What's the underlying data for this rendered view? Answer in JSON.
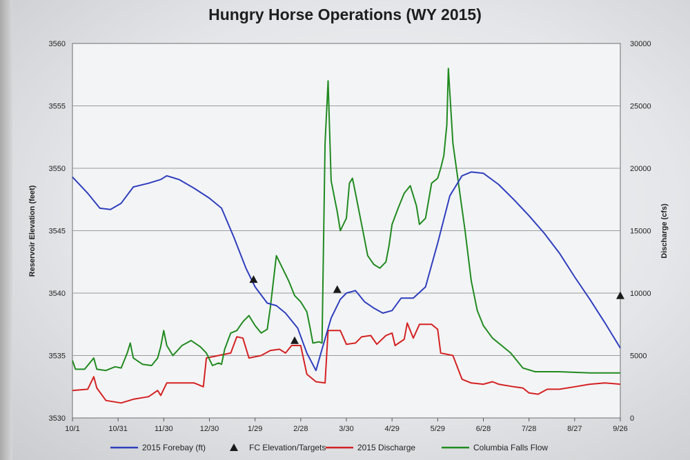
{
  "chart_data": {
    "type": "line",
    "title": "Hungry Horse Operations (WY 2015)",
    "ylabel": "Reservoir Elevation (feet)",
    "y2label": "Discharge (cfs)",
    "ylim": [
      3530,
      3560
    ],
    "y2lim": [
      0,
      30000
    ],
    "xlim": [
      0,
      360
    ],
    "y_ticks": [
      "3530",
      "3535",
      "3540",
      "3545",
      "3550",
      "3555",
      "3560"
    ],
    "y2_ticks": [
      "0",
      "5000",
      "10000",
      "15000",
      "20000",
      "25000",
      "30000"
    ],
    "x_ticks": [
      {
        "x": 0,
        "label": "10/1"
      },
      {
        "x": 30,
        "label": "10/31"
      },
      {
        "x": 60,
        "label": "11/30"
      },
      {
        "x": 90,
        "label": "12/30"
      },
      {
        "x": 120,
        "label": "1/29"
      },
      {
        "x": 150,
        "label": "2/28"
      },
      {
        "x": 180,
        "label": "3/30"
      },
      {
        "x": 210,
        "label": "4/29"
      },
      {
        "x": 240,
        "label": "5/29"
      },
      {
        "x": 270,
        "label": "6/28"
      },
      {
        "x": 300,
        "label": "7/28"
      },
      {
        "x": 330,
        "label": "8/27"
      },
      {
        "x": 360,
        "label": "9/26"
      }
    ],
    "grid": true,
    "legend_position": "bottom",
    "series": [
      {
        "name": "2015 Forebay (ft)",
        "axis": "left",
        "color": "#2e3ebd",
        "points": [
          [
            0,
            3549.3
          ],
          [
            10,
            3548
          ],
          [
            18,
            3546.8
          ],
          [
            25,
            3546.7
          ],
          [
            32,
            3547.2
          ],
          [
            40,
            3548.5
          ],
          [
            50,
            3548.8
          ],
          [
            58,
            3549.1
          ],
          [
            62,
            3549.4
          ],
          [
            70,
            3549.1
          ],
          [
            80,
            3548.4
          ],
          [
            90,
            3547.6
          ],
          [
            98,
            3546.8
          ],
          [
            106,
            3544.5
          ],
          [
            114,
            3542
          ],
          [
            120,
            3540.5
          ],
          [
            128,
            3539.2
          ],
          [
            134,
            3539
          ],
          [
            140,
            3538.4
          ],
          [
            148,
            3537.2
          ],
          [
            154,
            3535.2
          ],
          [
            160,
            3533.8
          ],
          [
            164,
            3535.5
          ],
          [
            170,
            3538
          ],
          [
            176,
            3539.5
          ],
          [
            180,
            3540
          ],
          [
            186,
            3540.2
          ],
          [
            192,
            3539.3
          ],
          [
            198,
            3538.8
          ],
          [
            204,
            3538.4
          ],
          [
            210,
            3538.6
          ],
          [
            216,
            3539.6
          ],
          [
            224,
            3539.6
          ],
          [
            232,
            3540.5
          ],
          [
            240,
            3544
          ],
          [
            248,
            3547.8
          ],
          [
            256,
            3549.4
          ],
          [
            262,
            3549.7
          ],
          [
            270,
            3549.6
          ],
          [
            280,
            3548.7
          ],
          [
            290,
            3547.5
          ],
          [
            300,
            3546.2
          ],
          [
            310,
            3544.8
          ],
          [
            320,
            3543.2
          ],
          [
            330,
            3541.3
          ],
          [
            340,
            3539.5
          ],
          [
            350,
            3537.6
          ],
          [
            360,
            3535.6
          ]
        ]
      },
      {
        "name": "FC Elevation/Targets",
        "axis": "left",
        "marker": "triangle",
        "color": "#1a1a1a",
        "points": [
          [
            119,
            3541.1
          ],
          [
            146,
            3536.2
          ],
          [
            174,
            3540.3
          ],
          [
            360,
            3539.8
          ]
        ]
      },
      {
        "name": "2015 Discharge",
        "axis": "right",
        "color": "#d42121",
        "points": [
          [
            0,
            2200
          ],
          [
            10,
            2300
          ],
          [
            14,
            3300
          ],
          [
            16,
            2400
          ],
          [
            22,
            1400
          ],
          [
            32,
            1200
          ],
          [
            40,
            1500
          ],
          [
            50,
            1700
          ],
          [
            56,
            2200
          ],
          [
            58,
            1800
          ],
          [
            62,
            2800
          ],
          [
            70,
            2800
          ],
          [
            80,
            2800
          ],
          [
            86,
            2500
          ],
          [
            88,
            4800
          ],
          [
            96,
            5000
          ],
          [
            104,
            5200
          ],
          [
            108,
            6500
          ],
          [
            112,
            6400
          ],
          [
            116,
            4800
          ],
          [
            124,
            5000
          ],
          [
            130,
            5400
          ],
          [
            136,
            5500
          ],
          [
            140,
            5200
          ],
          [
            144,
            5800
          ],
          [
            150,
            5800
          ],
          [
            154,
            3500
          ],
          [
            160,
            2900
          ],
          [
            166,
            2800
          ],
          [
            168,
            7000
          ],
          [
            176,
            7000
          ],
          [
            180,
            5900
          ],
          [
            186,
            6000
          ],
          [
            190,
            6500
          ],
          [
            196,
            6600
          ],
          [
            200,
            5900
          ],
          [
            206,
            6600
          ],
          [
            210,
            6800
          ],
          [
            212,
            5800
          ],
          [
            218,
            6300
          ],
          [
            220,
            7600
          ],
          [
            224,
            6400
          ],
          [
            228,
            7500
          ],
          [
            236,
            7500
          ],
          [
            240,
            7100
          ],
          [
            242,
            5200
          ],
          [
            250,
            5000
          ],
          [
            256,
            3100
          ],
          [
            262,
            2800
          ],
          [
            270,
            2700
          ],
          [
            276,
            2900
          ],
          [
            280,
            2700
          ],
          [
            290,
            2500
          ],
          [
            296,
            2400
          ],
          [
            300,
            2000
          ],
          [
            306,
            1900
          ],
          [
            312,
            2300
          ],
          [
            320,
            2300
          ],
          [
            330,
            2500
          ],
          [
            340,
            2700
          ],
          [
            350,
            2800
          ],
          [
            360,
            2700
          ]
        ]
      },
      {
        "name": "Columbia Falls Flow",
        "axis": "right",
        "color": "#1f8a1f",
        "points": [
          [
            0,
            4600
          ],
          [
            2,
            3900
          ],
          [
            8,
            3900
          ],
          [
            14,
            4800
          ],
          [
            16,
            3900
          ],
          [
            22,
            3800
          ],
          [
            28,
            4100
          ],
          [
            32,
            4000
          ],
          [
            36,
            5200
          ],
          [
            38,
            6000
          ],
          [
            40,
            4800
          ],
          [
            46,
            4300
          ],
          [
            52,
            4200
          ],
          [
            56,
            4800
          ],
          [
            58,
            5700
          ],
          [
            60,
            7000
          ],
          [
            62,
            5800
          ],
          [
            66,
            5000
          ],
          [
            72,
            5800
          ],
          [
            78,
            6200
          ],
          [
            84,
            5700
          ],
          [
            88,
            5200
          ],
          [
            92,
            4200
          ],
          [
            96,
            4400
          ],
          [
            98,
            4300
          ],
          [
            100,
            5500
          ],
          [
            104,
            6800
          ],
          [
            108,
            7000
          ],
          [
            112,
            7700
          ],
          [
            116,
            8200
          ],
          [
            120,
            7400
          ],
          [
            124,
            6800
          ],
          [
            128,
            7100
          ],
          [
            130,
            8800
          ],
          [
            134,
            13000
          ],
          [
            138,
            12000
          ],
          [
            142,
            11000
          ],
          [
            146,
            9800
          ],
          [
            150,
            9300
          ],
          [
            154,
            8500
          ],
          [
            156,
            7300
          ],
          [
            158,
            6000
          ],
          [
            162,
            6100
          ],
          [
            164,
            6000
          ],
          [
            166,
            22000
          ],
          [
            168,
            27000
          ],
          [
            170,
            19000
          ],
          [
            174,
            16500
          ],
          [
            176,
            15000
          ],
          [
            180,
            16000
          ],
          [
            182,
            18800
          ],
          [
            184,
            19200
          ],
          [
            186,
            18000
          ],
          [
            190,
            15500
          ],
          [
            194,
            13000
          ],
          [
            198,
            12300
          ],
          [
            202,
            12000
          ],
          [
            206,
            12500
          ],
          [
            208,
            13800
          ],
          [
            210,
            15500
          ],
          [
            214,
            16800
          ],
          [
            218,
            18000
          ],
          [
            222,
            18600
          ],
          [
            226,
            17000
          ],
          [
            228,
            15500
          ],
          [
            232,
            16000
          ],
          [
            236,
            18800
          ],
          [
            240,
            19200
          ],
          [
            242,
            20000
          ],
          [
            244,
            21000
          ],
          [
            246,
            23500
          ],
          [
            247,
            28000
          ],
          [
            248,
            26000
          ],
          [
            250,
            22000
          ],
          [
            254,
            18500
          ],
          [
            258,
            15000
          ],
          [
            262,
            11000
          ],
          [
            266,
            8600
          ],
          [
            270,
            7400
          ],
          [
            276,
            6400
          ],
          [
            282,
            5800
          ],
          [
            288,
            5200
          ],
          [
            292,
            4600
          ],
          [
            296,
            4000
          ],
          [
            304,
            3700
          ],
          [
            320,
            3700
          ],
          [
            340,
            3600
          ],
          [
            360,
            3600
          ]
        ]
      }
    ]
  }
}
